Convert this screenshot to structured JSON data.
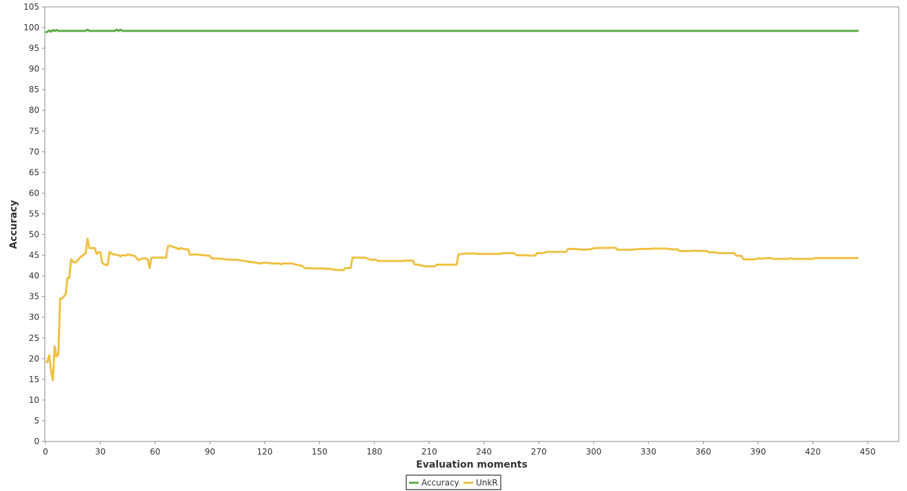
{
  "chart_data": {
    "type": "line",
    "title": "",
    "xlabel": "Evaluation moments",
    "ylabel": "Accuracy",
    "xlim": [
      0,
      465
    ],
    "ylim": [
      0,
      105
    ],
    "xticks": [
      0,
      30,
      60,
      90,
      120,
      150,
      180,
      210,
      240,
      270,
      300,
      330,
      360,
      390,
      420,
      450
    ],
    "yticks": [
      0,
      5,
      10,
      15,
      20,
      25,
      30,
      35,
      40,
      45,
      50,
      55,
      60,
      65,
      70,
      75,
      80,
      85,
      90,
      95,
      100,
      105
    ],
    "grid": false,
    "legend_position": "bottom-center",
    "colors": {
      "Accuracy": "#5aaa46",
      "UnkR": "#f0c040",
      "axis": "#888888",
      "frame": "#888888"
    },
    "series": [
      {
        "name": "Accuracy",
        "color": "#5aaa46",
        "points": [
          [
            0,
            98.8
          ],
          [
            1,
            99.0
          ],
          [
            2,
            99.3
          ],
          [
            3,
            99.0
          ],
          [
            4,
            99.4
          ],
          [
            5,
            99.2
          ],
          [
            6,
            99.4
          ],
          [
            7,
            99.2
          ],
          [
            10,
            99.2
          ],
          [
            20,
            99.2
          ],
          [
            22,
            99.2
          ],
          [
            23,
            99.5
          ],
          [
            24,
            99.2
          ],
          [
            30,
            99.2
          ],
          [
            38,
            99.2
          ],
          [
            39,
            99.5
          ],
          [
            40,
            99.2
          ],
          [
            41,
            99.5
          ],
          [
            42,
            99.2
          ],
          [
            60,
            99.2
          ],
          [
            100,
            99.2
          ],
          [
            200,
            99.2
          ],
          [
            300,
            99.2
          ],
          [
            400,
            99.2
          ],
          [
            445,
            99.2
          ]
        ]
      },
      {
        "name": "UnkR",
        "color": "#f0c040",
        "points": [
          [
            0,
            19.2
          ],
          [
            1,
            19.2
          ],
          [
            2,
            20.8
          ],
          [
            3,
            17.0
          ],
          [
            4,
            14.8
          ],
          [
            5,
            23.0
          ],
          [
            6,
            20.5
          ],
          [
            7,
            21.0
          ],
          [
            8,
            34.5
          ],
          [
            9,
            34.5
          ],
          [
            10,
            35.0
          ],
          [
            11,
            35.5
          ],
          [
            12,
            39.5
          ],
          [
            13,
            39.5
          ],
          [
            14,
            44.0
          ],
          [
            15,
            43.5
          ],
          [
            16,
            43.2
          ],
          [
            17,
            43.4
          ],
          [
            18,
            44.0
          ],
          [
            19,
            44.5
          ],
          [
            20,
            44.8
          ],
          [
            22,
            45.5
          ],
          [
            23,
            49.0
          ],
          [
            24,
            46.7
          ],
          [
            27,
            46.7
          ],
          [
            28,
            45.3
          ],
          [
            29,
            45.7
          ],
          [
            30,
            45.7
          ],
          [
            31,
            43.2
          ],
          [
            32,
            42.8
          ],
          [
            34,
            42.6
          ],
          [
            35,
            45.8
          ],
          [
            36,
            45.5
          ],
          [
            37,
            45.2
          ],
          [
            40,
            45.0
          ],
          [
            41,
            44.7
          ],
          [
            42,
            45.0
          ],
          [
            44,
            44.9
          ],
          [
            45,
            45.2
          ],
          [
            47,
            45.0
          ],
          [
            49,
            44.8
          ],
          [
            50,
            44.2
          ],
          [
            51,
            43.8
          ],
          [
            53,
            44.2
          ],
          [
            54,
            44.3
          ],
          [
            56,
            44.0
          ],
          [
            57,
            41.9
          ],
          [
            58,
            44.4
          ],
          [
            66,
            44.4
          ],
          [
            67,
            47.2
          ],
          [
            68,
            47.3
          ],
          [
            70,
            47.0
          ],
          [
            72,
            46.7
          ],
          [
            73,
            46.4
          ],
          [
            74,
            46.8
          ],
          [
            75,
            46.5
          ],
          [
            78,
            46.4
          ],
          [
            79,
            45.1
          ],
          [
            82,
            45.2
          ],
          [
            87,
            45.0
          ],
          [
            90,
            44.8
          ],
          [
            91,
            44.2
          ],
          [
            95,
            44.2
          ],
          [
            100,
            43.9
          ],
          [
            105,
            43.9
          ],
          [
            110,
            43.5
          ],
          [
            115,
            43.2
          ],
          [
            117,
            43.0
          ],
          [
            120,
            43.2
          ],
          [
            125,
            43.0
          ],
          [
            128,
            43.0
          ],
          [
            129,
            42.8
          ],
          [
            130,
            43.0
          ],
          [
            135,
            43.0
          ],
          [
            137,
            42.7
          ],
          [
            140,
            42.5
          ],
          [
            142,
            41.9
          ],
          [
            145,
            41.8
          ],
          [
            150,
            41.8
          ],
          [
            155,
            41.7
          ],
          [
            160,
            41.4
          ],
          [
            163,
            41.4
          ],
          [
            164,
            41.9
          ],
          [
            167,
            41.9
          ],
          [
            168,
            44.4
          ],
          [
            175,
            44.4
          ],
          [
            178,
            43.9
          ],
          [
            181,
            43.9
          ],
          [
            182,
            43.6
          ],
          [
            190,
            43.6
          ],
          [
            195,
            43.6
          ],
          [
            198,
            43.7
          ],
          [
            201,
            43.7
          ],
          [
            202,
            42.8
          ],
          [
            205,
            42.6
          ],
          [
            208,
            42.3
          ],
          [
            213,
            42.3
          ],
          [
            214,
            42.7
          ],
          [
            220,
            42.7
          ],
          [
            225,
            42.7
          ],
          [
            226,
            45.2
          ],
          [
            230,
            45.4
          ],
          [
            235,
            45.4
          ],
          [
            237,
            45.3
          ],
          [
            242,
            45.3
          ],
          [
            249,
            45.3
          ],
          [
            250,
            45.5
          ],
          [
            256,
            45.5
          ],
          [
            258,
            45.0
          ],
          [
            262,
            45.0
          ],
          [
            265,
            44.9
          ],
          [
            268,
            44.9
          ],
          [
            269,
            45.5
          ],
          [
            272,
            45.5
          ],
          [
            275,
            45.8
          ],
          [
            280,
            45.8
          ],
          [
            285,
            45.8
          ],
          [
            286,
            46.5
          ],
          [
            290,
            46.5
          ],
          [
            295,
            46.3
          ],
          [
            299,
            46.5
          ],
          [
            300,
            46.7
          ],
          [
            310,
            46.8
          ],
          [
            312,
            46.8
          ],
          [
            313,
            46.3
          ],
          [
            320,
            46.3
          ],
          [
            325,
            46.5
          ],
          [
            330,
            46.5
          ],
          [
            332,
            46.6
          ],
          [
            340,
            46.6
          ],
          [
            343,
            46.4
          ],
          [
            346,
            46.4
          ],
          [
            347,
            46.0
          ],
          [
            353,
            46.0
          ],
          [
            354,
            46.1
          ],
          [
            362,
            46.0
          ],
          [
            363,
            45.7
          ],
          [
            367,
            45.7
          ],
          [
            368,
            45.5
          ],
          [
            377,
            45.5
          ],
          [
            378,
            44.9
          ],
          [
            381,
            44.8
          ],
          [
            382,
            44.0
          ],
          [
            388,
            44.0
          ],
          [
            390,
            44.2
          ],
          [
            393,
            44.2
          ],
          [
            395,
            44.3
          ],
          [
            397,
            44.3
          ],
          [
            398,
            44.1
          ],
          [
            407,
            44.1
          ],
          [
            408,
            44.3
          ],
          [
            409,
            44.1
          ],
          [
            420,
            44.1
          ],
          [
            421,
            44.3
          ],
          [
            445,
            44.3
          ]
        ]
      }
    ]
  }
}
